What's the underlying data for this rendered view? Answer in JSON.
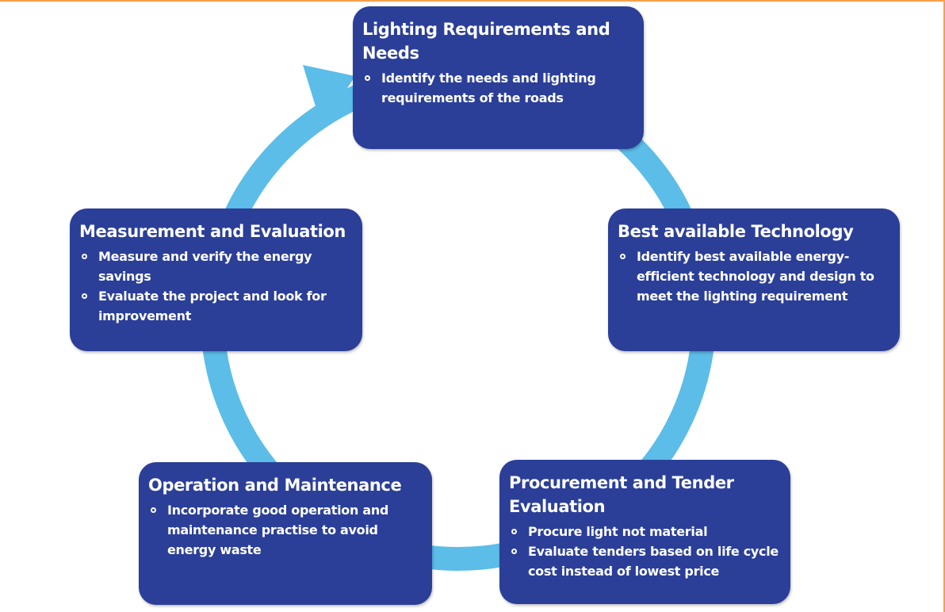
{
  "nodes": [
    {
      "title": "Lighting Requirements and Needs",
      "bullets": [
        "Identify the needs and lighting requirements of the roads"
      ]
    },
    {
      "title": "Best available Technology",
      "bullets": [
        "Identify best available energy-efficient technology and design to meet the lighting requirement"
      ]
    },
    {
      "title": "Procurement and Tender Evaluation",
      "bullets": [
        "Procure light not material",
        "Evaluate tenders based on life cycle cost instead of lowest price"
      ]
    },
    {
      "title": "Operation and Maintenance",
      "bullets": [
        "Incorporate good operation and maintenance practise to avoid energy waste"
      ]
    },
    {
      "title": "Measurement and Evaluation",
      "bullets": [
        "Measure and verify the energy savings",
        "Evaluate the project and look for improvement"
      ]
    }
  ]
}
